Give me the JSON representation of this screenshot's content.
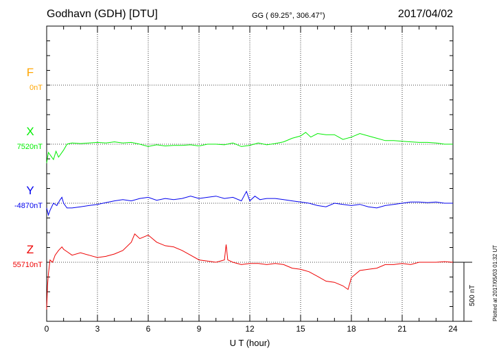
{
  "header": {
    "station": "Godhavn (GDH)  [DTU]",
    "coords": "GG ( 69.25°, 306.47°)",
    "date": "2017/04/02"
  },
  "plot_note": "Plotted at 2017/05/03 01:32 UT",
  "scale_label": "500 nT",
  "chart_data": {
    "type": "line",
    "xlabel": "U T (hour)",
    "xlim": [
      0,
      24
    ],
    "x_ticks": [
      "0",
      "3",
      "6",
      "9",
      "12",
      "15",
      "18",
      "21",
      "24"
    ],
    "grid": true,
    "scale_bar_nT": 500,
    "series": [
      {
        "name": "F",
        "baseline_label": "0nT",
        "color": "#ffa500",
        "x": [],
        "y": []
      },
      {
        "name": "X",
        "baseline_label": "7520nT",
        "color": "#00ee00",
        "x": [
          0,
          0.1,
          0.25,
          0.4,
          0.55,
          0.7,
          0.85,
          1.0,
          1.2,
          1.5,
          2,
          2.5,
          3,
          3.5,
          4,
          4.5,
          5,
          5.5,
          6,
          6.5,
          7,
          7.5,
          8,
          8.5,
          9,
          9.5,
          10,
          10.5,
          11,
          11.5,
          12,
          12.5,
          13,
          13.5,
          14,
          14.5,
          15,
          15.3,
          15.6,
          16,
          16.5,
          17,
          17.5,
          18,
          18.5,
          19,
          19.5,
          20,
          20.5,
          21,
          21.5,
          22,
          22.5,
          23,
          23.5,
          24
        ],
        "y": [
          -160,
          -70,
          -100,
          -130,
          -60,
          -110,
          -80,
          -50,
          0,
          10,
          5,
          10,
          15,
          10,
          20,
          10,
          15,
          0,
          -20,
          -5,
          -15,
          -10,
          -10,
          -5,
          -15,
          0,
          0,
          -5,
          10,
          -20,
          -10,
          10,
          -5,
          5,
          20,
          50,
          70,
          100,
          60,
          90,
          80,
          80,
          40,
          60,
          90,
          70,
          50,
          30,
          30,
          25,
          20,
          15,
          15,
          10,
          0,
          0
        ]
      },
      {
        "name": "Y",
        "baseline_label": "-4870nT",
        "color": "#0000ee",
        "x": [
          0,
          0.1,
          0.2,
          0.4,
          0.6,
          0.8,
          0.9,
          1.0,
          1.2,
          1.5,
          2,
          2.5,
          3,
          3.5,
          4,
          4.5,
          5,
          5.5,
          6,
          6.5,
          7,
          7.5,
          8,
          8.5,
          9,
          9.5,
          10,
          10.5,
          11,
          11.5,
          11.8,
          12,
          12.3,
          12.6,
          13,
          13.5,
          14,
          14.5,
          15,
          15.5,
          16,
          16.5,
          17,
          17.5,
          18,
          18.5,
          19,
          19.5,
          20,
          20.5,
          21,
          21.5,
          22,
          22.5,
          23,
          23.5,
          24
        ],
        "y": [
          -40,
          -100,
          -60,
          0,
          -20,
          30,
          50,
          0,
          -40,
          -40,
          -30,
          -20,
          -10,
          5,
          20,
          30,
          20,
          40,
          50,
          25,
          40,
          30,
          40,
          60,
          40,
          50,
          60,
          40,
          50,
          20,
          100,
          20,
          60,
          30,
          40,
          40,
          30,
          20,
          10,
          0,
          -20,
          -30,
          0,
          -10,
          -20,
          -10,
          -30,
          -40,
          -20,
          -10,
          0,
          10,
          10,
          5,
          10,
          0,
          0
        ]
      },
      {
        "name": "Z",
        "baseline_label": "55710nT",
        "color": "#ee0000",
        "x": [
          0,
          0.05,
          0.1,
          0.2,
          0.35,
          0.5,
          0.7,
          0.9,
          1.0,
          1.2,
          1.5,
          2,
          2.5,
          3,
          3.5,
          4,
          4.5,
          5,
          5.2,
          5.5,
          6,
          6.5,
          7,
          7.5,
          8,
          8.5,
          9,
          9.5,
          10,
          10.5,
          10.6,
          10.7,
          11,
          11.5,
          12,
          12.5,
          13,
          13.5,
          14,
          14.5,
          15,
          15.5,
          16,
          16.5,
          17,
          17.5,
          17.8,
          18,
          18.5,
          19,
          19.5,
          20,
          20.5,
          21,
          21.5,
          22,
          22.5,
          23,
          23.5,
          24
        ],
        "y": [
          -400,
          -200,
          -100,
          20,
          0,
          60,
          100,
          130,
          110,
          90,
          60,
          80,
          60,
          40,
          50,
          70,
          100,
          170,
          240,
          200,
          230,
          170,
          140,
          130,
          100,
          60,
          20,
          10,
          0,
          20,
          150,
          20,
          0,
          -20,
          -10,
          -10,
          -20,
          -10,
          -20,
          -50,
          -60,
          -80,
          -120,
          -160,
          -170,
          -200,
          -230,
          -130,
          -70,
          -60,
          -50,
          -20,
          -20,
          -10,
          -20,
          0,
          0,
          0,
          5,
          0
        ]
      }
    ]
  }
}
